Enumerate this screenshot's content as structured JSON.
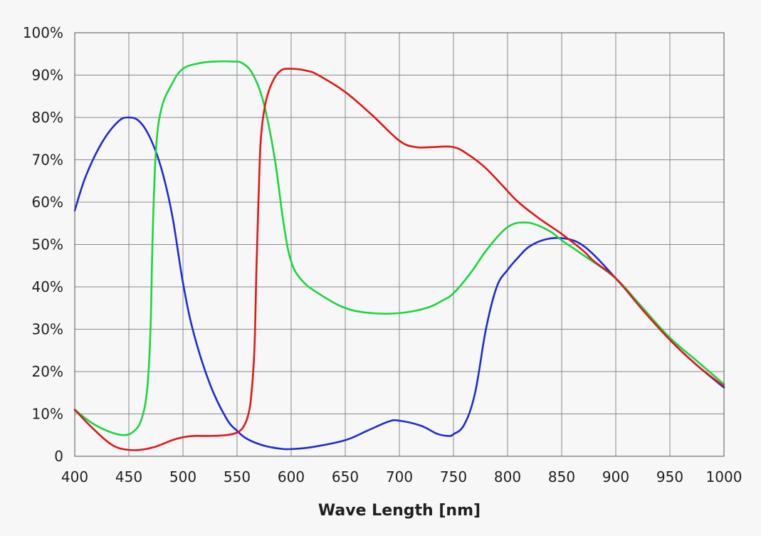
{
  "chart_data": {
    "type": "line",
    "title": "",
    "xlabel": "Wave Length [nm]",
    "ylabel": "",
    "xlim": [
      400,
      1000
    ],
    "ylim": [
      0,
      100
    ],
    "grid": true,
    "x_ticks": [
      400,
      450,
      500,
      550,
      600,
      650,
      700,
      750,
      800,
      850,
      900,
      950,
      1000
    ],
    "x_tick_labels": [
      "400",
      "450",
      "500",
      "550",
      "600",
      "650",
      "700",
      "750",
      "800",
      "850",
      "900",
      "950",
      "1000"
    ],
    "y_ticks": [
      0,
      10,
      20,
      30,
      40,
      50,
      60,
      70,
      80,
      90,
      100
    ],
    "y_tick_labels": [
      "0",
      "10%",
      "20%",
      "30%",
      "40%",
      "50%",
      "60%",
      "70%",
      "80%",
      "90%",
      "100%"
    ],
    "series": [
      {
        "name": "Blue",
        "color": "#1f2bd6",
        "x": [
          400,
          410,
          425,
          440,
          450,
          460,
          470,
          480,
          490,
          500,
          510,
          525,
          540,
          550,
          560,
          575,
          590,
          600,
          620,
          650,
          670,
          690,
          700,
          720,
          735,
          745,
          750,
          760,
          770,
          780,
          790,
          800,
          810,
          820,
          835,
          850,
          865,
          880,
          900,
          925,
          950,
          975,
          1000
        ],
        "values": [
          58,
          66,
          74,
          79,
          80,
          79,
          75,
          68,
          57,
          41,
          29,
          17,
          9,
          6,
          4,
          2.5,
          1.8,
          1.7,
          2.2,
          3.8,
          6,
          8.2,
          8.4,
          7.2,
          5.3,
          4.8,
          5.2,
          7.5,
          15,
          30,
          40,
          44,
          47,
          49.5,
          51.2,
          51.5,
          50.5,
          47.5,
          42,
          35,
          27.5,
          21.5,
          16.2
        ]
      },
      {
        "name": "Green",
        "color": "#19d63e",
        "x": [
          400,
          415,
          430,
          445,
          455,
          462,
          467,
          470,
          472,
          475,
          480,
          490,
          500,
          515,
          530,
          545,
          555,
          565,
          575,
          585,
          593,
          600,
          610,
          625,
          650,
          675,
          700,
          725,
          740,
          750,
          765,
          780,
          795,
          805,
          815,
          825,
          840,
          850,
          870,
          900,
          925,
          950,
          975,
          1000
        ],
        "values": [
          11,
          8,
          6,
          5,
          6,
          9,
          16,
          30,
          52,
          72,
          82,
          88,
          91.5,
          92.8,
          93.2,
          93.2,
          92.8,
          90,
          83,
          70,
          55,
          46,
          41.5,
          38.5,
          35,
          33.8,
          33.8,
          35,
          36.8,
          38.5,
          43,
          48.5,
          53,
          54.8,
          55.2,
          54.8,
          53,
          51,
          47.5,
          42,
          35,
          28,
          22.5,
          17
        ]
      },
      {
        "name": "Red",
        "color": "#e01818",
        "x": [
          400,
          415,
          430,
          440,
          450,
          460,
          475,
          490,
          500,
          510,
          525,
          540,
          550,
          556,
          560,
          563,
          566,
          568,
          570,
          572,
          576,
          582,
          590,
          600,
          615,
          625,
          650,
          675,
          700,
          715,
          730,
          750,
          765,
          780,
          795,
          810,
          830,
          850,
          870,
          880,
          900,
          925,
          950,
          975,
          1000
        ],
        "values": [
          11,
          7,
          3.5,
          2,
          1.5,
          1.5,
          2.3,
          3.8,
          4.5,
          4.8,
          4.8,
          5,
          5.6,
          7,
          9.5,
          14,
          25,
          45,
          62,
          75,
          83,
          88,
          91,
          91.5,
          91,
          90,
          86,
          80.5,
          74.5,
          73,
          73,
          73,
          71,
          68,
          64,
          60,
          56,
          52.5,
          48.5,
          46,
          42,
          34.5,
          27.5,
          21.5,
          16.5
        ]
      }
    ]
  }
}
